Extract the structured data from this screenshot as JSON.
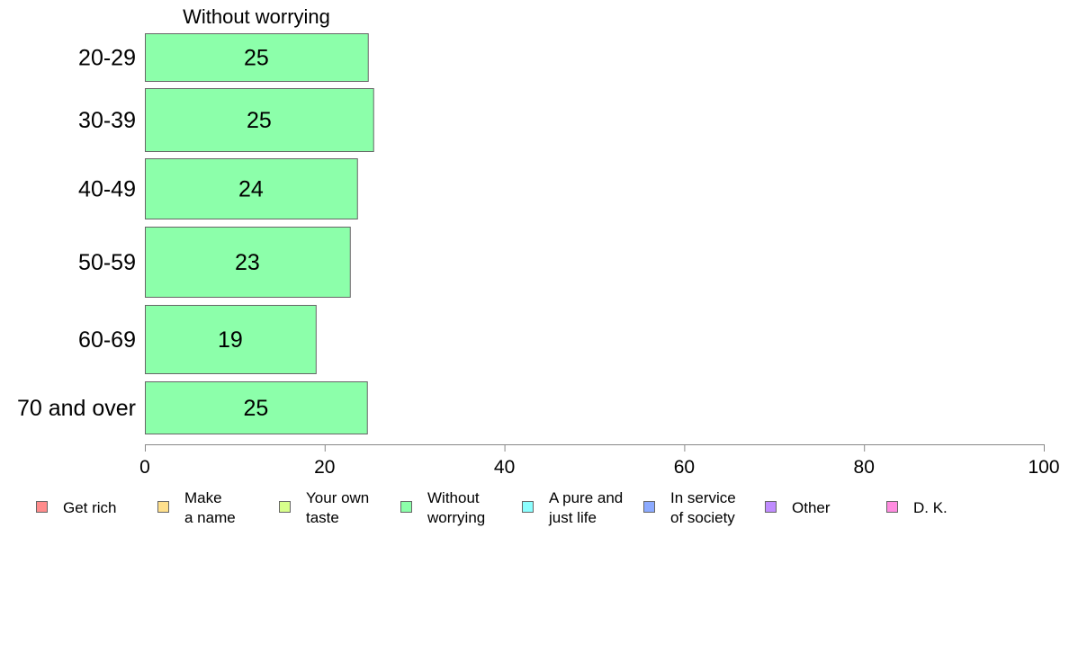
{
  "chart_data": {
    "type": "bar",
    "orientation": "horizontal",
    "title": "Without worrying",
    "categories": [
      "20-29",
      "30-39",
      "40-49",
      "50-59",
      "60-69",
      "70 and over"
    ],
    "series": [
      {
        "name": "Without worrying",
        "color": "#8cffaa",
        "values": [
          24.8,
          25.4,
          23.6,
          22.8,
          19.0,
          24.7
        ],
        "labels": [
          "25",
          "25",
          "24",
          "23",
          "19",
          "25"
        ]
      }
    ],
    "xlim": [
      0,
      100
    ],
    "xticks": [
      0,
      20,
      40,
      60,
      80,
      100
    ],
    "bar_edge_color": "#666666",
    "axis_color": "#888888",
    "grid": false,
    "legend_position": "bottom",
    "legend": [
      {
        "label": "Get rich",
        "color": "#ff8c8c"
      },
      {
        "label": "Make\na name",
        "color": "#ffe08c"
      },
      {
        "label": "Your own\ntaste",
        "color": "#d8ff8c"
      },
      {
        "label": "Without\nworrying",
        "color": "#8cffaa"
      },
      {
        "label": "A pure and\njust life",
        "color": "#8cffff"
      },
      {
        "label": "In service\nof society",
        "color": "#8caaff"
      },
      {
        "label": "Other",
        "color": "#c08cff"
      },
      {
        "label": "D. K.",
        "color": "#ff8ce0"
      }
    ]
  }
}
